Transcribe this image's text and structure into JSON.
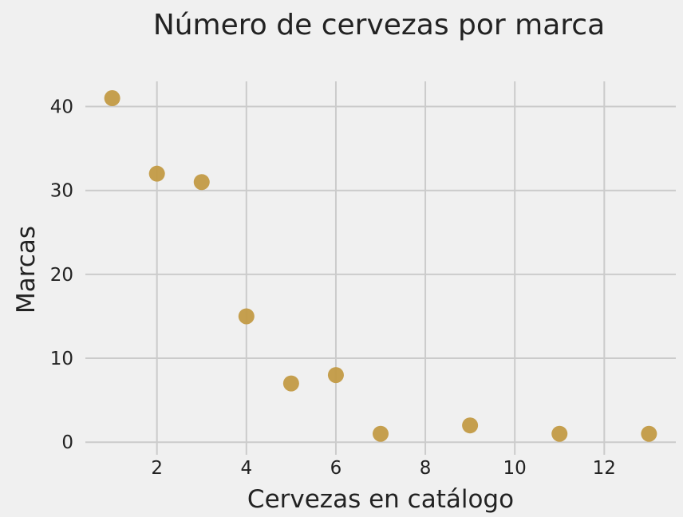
{
  "chart_data": {
    "type": "scatter",
    "title": "Número de cervezas por marca",
    "xlabel": "Cervezas en catálogo",
    "ylabel": "Marcas",
    "x": [
      1,
      2,
      3,
      4,
      5,
      6,
      7,
      9,
      11,
      13
    ],
    "y": [
      41,
      32,
      31,
      15,
      7,
      8,
      1,
      2,
      1,
      1
    ],
    "xlim": [
      0.4,
      13.6
    ],
    "ylim": [
      -1.5,
      43
    ],
    "xticks": [
      2,
      4,
      6,
      8,
      10,
      12
    ],
    "yticks": [
      0,
      10,
      20,
      30,
      40
    ],
    "grid": true,
    "legend": "none",
    "colors": {
      "marker": "#c29a45",
      "background": "#f0f0f0",
      "grid": "#cbcbcb",
      "text": "#222222"
    }
  }
}
